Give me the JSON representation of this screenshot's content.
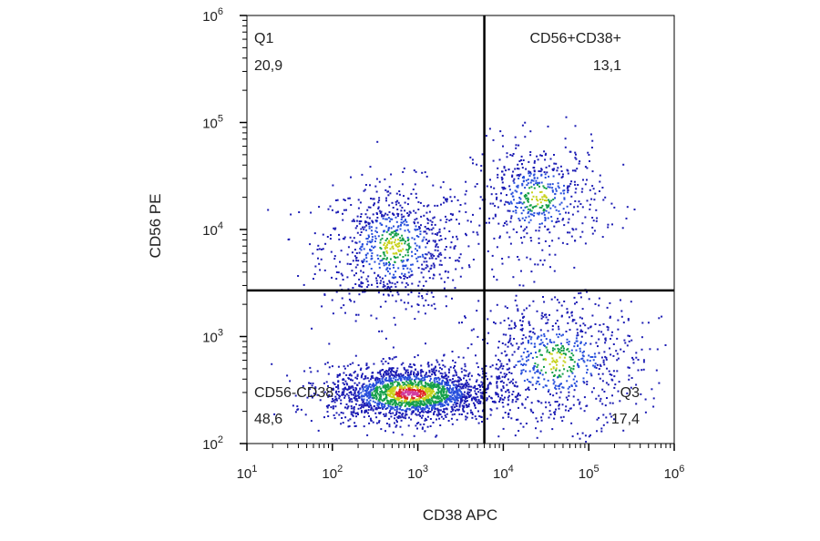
{
  "chart_data": {
    "type": "scatter",
    "subtype": "flow-cytometry-dot-plot",
    "x_axis": {
      "label": "CD38 APC",
      "scale": "log10",
      "range": [
        10,
        1000000
      ],
      "tick_labels": [
        {
          "base": "10",
          "exp": "1"
        },
        {
          "base": "10",
          "exp": "2"
        },
        {
          "base": "10",
          "exp": "3"
        },
        {
          "base": "10",
          "exp": "4"
        },
        {
          "base": "10",
          "exp": "5"
        },
        {
          "base": "10",
          "exp": "6"
        }
      ]
    },
    "y_axis": {
      "label": "CD56 PE",
      "scale": "log10",
      "range": [
        100,
        1000000
      ],
      "tick_labels": [
        {
          "base": "10",
          "exp": "2"
        },
        {
          "base": "10",
          "exp": "3"
        },
        {
          "base": "10",
          "exp": "4"
        },
        {
          "base": "10",
          "exp": "5"
        },
        {
          "base": "10",
          "exp": "6"
        }
      ]
    },
    "gate": {
      "x": 6000,
      "y": 2700
    },
    "quadrants": [
      {
        "position": "top-left",
        "name": "Q1",
        "value": "20,9"
      },
      {
        "position": "top-right",
        "name": "CD56+CD38+",
        "value": "13,1"
      },
      {
        "position": "bottom-left",
        "name": "CD56-CD38",
        "value": "48,6"
      },
      {
        "position": "bottom-right",
        "name": "Q3",
        "value": "17,4"
      }
    ],
    "populations": [
      {
        "description": "CD56 high / CD38 low",
        "x_center": 500,
        "y_center": 7000,
        "weight": 0.2
      },
      {
        "description": "CD56 high / CD38 high",
        "x_center": 25000,
        "y_center": 20000,
        "weight": 0.13
      },
      {
        "description": "CD56 low / CD38 low (dense)",
        "x_center": 800,
        "y_center": 300,
        "weight": 0.49
      },
      {
        "description": "CD56 low / CD38 high",
        "x_center": 40000,
        "y_center": 600,
        "weight": 0.18
      }
    ],
    "density_colors": [
      "#1c1cb4",
      "#2850dc",
      "#16a04a",
      "#c8d21e",
      "#e02020",
      "#d23ca0"
    ]
  }
}
